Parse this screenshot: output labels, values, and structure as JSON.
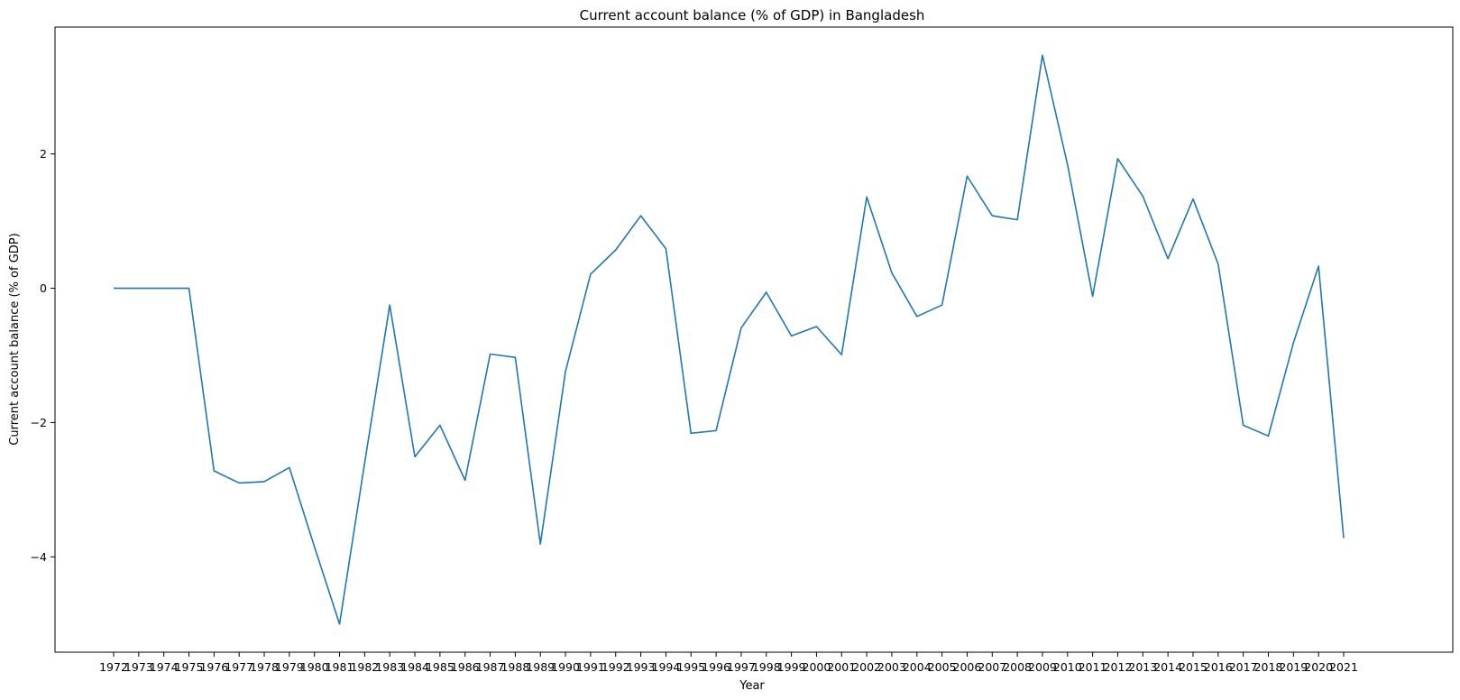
{
  "chart_data": {
    "type": "line",
    "title": "Current account balance (% of GDP) in Bangladesh",
    "xlabel": "Year",
    "ylabel": "Current account balance (% of GDP)",
    "x": [
      "1972",
      "1973",
      "1974",
      "1975",
      "1976",
      "1977",
      "1978",
      "1979",
      "1980",
      "1981",
      "1982",
      "1983",
      "1984",
      "1985",
      "1986",
      "1987",
      "1988",
      "1989",
      "1990",
      "1991",
      "1992",
      "1993",
      "1994",
      "1995",
      "1996",
      "1997",
      "1998",
      "1999",
      "2000",
      "2001",
      "2002",
      "2003",
      "2004",
      "2005",
      "2006",
      "2007",
      "2008",
      "2009",
      "2010",
      "2011",
      "2012",
      "2013",
      "2014",
      "2015",
      "2016",
      "2017",
      "2018",
      "2019",
      "2020",
      "2021"
    ],
    "series": [
      {
        "color": "#1f77b4",
        "values": [
          0,
          0,
          0,
          0,
          -2.72,
          -2.9,
          -2.88,
          -2.67,
          -3.85,
          -5.0,
          -2.6,
          -0.25,
          -2.51,
          -2.04,
          -2.86,
          -0.98,
          -1.03,
          -3.81,
          -1.24,
          0.21,
          0.57,
          1.08,
          0.59,
          -2.16,
          -2.12,
          -0.59,
          -0.06,
          -0.71,
          -0.57,
          -0.99,
          1.36,
          0.23,
          -0.42,
          -0.25,
          1.67,
          1.08,
          1.02,
          3.47,
          1.84,
          -0.12,
          1.93,
          1.37,
          0.44,
          1.33,
          0.36,
          -2.04,
          -2.2,
          -0.81,
          0.33,
          -3.72
        ]
      }
    ],
    "yticks": [
      -4,
      -2,
      0,
      2
    ],
    "ylim": [
      -5.42,
      3.89
    ],
    "grid": false,
    "legend": "none"
  }
}
